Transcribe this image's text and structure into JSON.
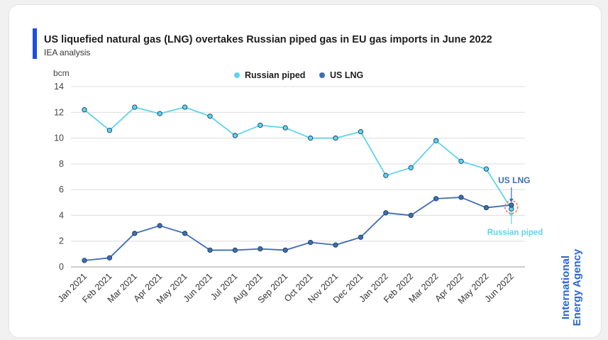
{
  "title": "US liquefied natural gas (LNG) overtakes Russian piped gas in EU gas imports in June 2022",
  "subtitle": "IEA analysis",
  "organization": {
    "line1": "International",
    "line2": "Energy Agency"
  },
  "colors": {
    "russian": "#5fd3ee",
    "us_lng": "#3d6db5",
    "accent": "#1a4fe0",
    "highlight": "#e87a5d"
  },
  "chart_data": {
    "type": "line",
    "categories": [
      "Jan 2021",
      "Feb 2021",
      "Mar 2021",
      "Apr 2021",
      "May 2021",
      "Jun 2021",
      "Jul 2021",
      "Aug 2021",
      "Sep 2021",
      "Oct 2021",
      "Nov 2021",
      "Dec 2021",
      "Jan 2022",
      "Feb 2022",
      "Mar 2022",
      "Apr 2022",
      "May 2022",
      "Jun 2022"
    ],
    "series": [
      {
        "name": "Russian piped",
        "values": [
          12.2,
          10.6,
          12.4,
          11.9,
          12.4,
          11.7,
          10.2,
          11.0,
          10.8,
          10.0,
          10.0,
          10.5,
          7.1,
          7.7,
          9.8,
          8.2,
          7.6,
          4.5
        ]
      },
      {
        "name": "US LNG",
        "values": [
          0.5,
          0.7,
          2.6,
          3.2,
          2.6,
          1.3,
          1.3,
          1.4,
          1.3,
          1.9,
          1.7,
          2.3,
          4.2,
          4.0,
          5.3,
          5.4,
          4.6,
          4.8
        ]
      }
    ],
    "ylabel": "bcm",
    "ylim": [
      0,
      14
    ],
    "yticks": [
      0,
      2,
      4,
      6,
      8,
      10,
      12,
      14
    ],
    "grid": true,
    "legend": "top-center",
    "annotations": [
      {
        "text": "US LNG",
        "series": "US LNG",
        "category": "Jun 2022"
      },
      {
        "text": "Russian piped",
        "series": "Russian piped",
        "category": "Jun 2022"
      }
    ]
  }
}
